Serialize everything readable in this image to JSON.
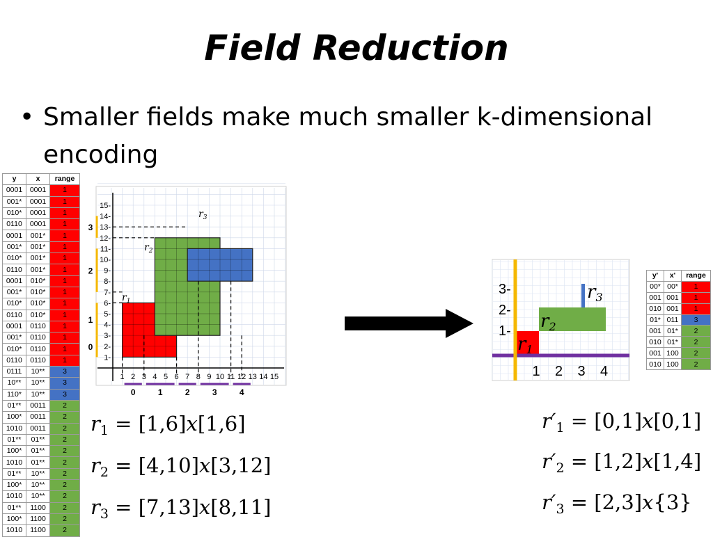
{
  "slide": {
    "title": "Field Reduction",
    "bullet": "Smaller fields make much smaller k-dimensional encoding"
  },
  "colors": {
    "red": "#ff0000",
    "blue": "#4472c4",
    "green": "#70ad47",
    "purple": "#7030a0",
    "orange": "#f5b800"
  },
  "left_table": {
    "headers": [
      "y",
      "x",
      "range"
    ],
    "rows": [
      [
        "0001",
        "0001",
        "1",
        "red"
      ],
      [
        "001*",
        "0001",
        "1",
        "red"
      ],
      [
        "010*",
        "0001",
        "1",
        "red"
      ],
      [
        "0110",
        "0001",
        "1",
        "red"
      ],
      [
        "0001",
        "001*",
        "1",
        "red"
      ],
      [
        "001*",
        "001*",
        "1",
        "red"
      ],
      [
        "010*",
        "001*",
        "1",
        "red"
      ],
      [
        "0110",
        "001*",
        "1",
        "red"
      ],
      [
        "0001",
        "010*",
        "1",
        "red"
      ],
      [
        "001*",
        "010*",
        "1",
        "red"
      ],
      [
        "010*",
        "010*",
        "1",
        "red"
      ],
      [
        "0110",
        "010*",
        "1",
        "red"
      ],
      [
        "0001",
        "0110",
        "1",
        "red"
      ],
      [
        "001*",
        "0110",
        "1",
        "red"
      ],
      [
        "010*",
        "0110",
        "1",
        "red"
      ],
      [
        "0110",
        "0110",
        "1",
        "red"
      ],
      [
        "0111",
        "10**",
        "3",
        "blue"
      ],
      [
        "10**",
        "10**",
        "3",
        "blue"
      ],
      [
        "110*",
        "10**",
        "3",
        "blue"
      ],
      [
        "01**",
        "0011",
        "2",
        "green"
      ],
      [
        "100*",
        "0011",
        "2",
        "green"
      ],
      [
        "1010",
        "0011",
        "2",
        "green"
      ],
      [
        "01**",
        "01**",
        "2",
        "green"
      ],
      [
        "100*",
        "01**",
        "2",
        "green"
      ],
      [
        "1010",
        "01**",
        "2",
        "green"
      ],
      [
        "01**",
        "10**",
        "2",
        "green"
      ],
      [
        "100*",
        "10**",
        "2",
        "green"
      ],
      [
        "1010",
        "10**",
        "2",
        "green"
      ],
      [
        "01**",
        "1100",
        "2",
        "green"
      ],
      [
        "100*",
        "1100",
        "2",
        "green"
      ],
      [
        "1010",
        "1100",
        "2",
        "green"
      ]
    ]
  },
  "right_table": {
    "headers": [
      "y'",
      "x'",
      "range"
    ],
    "rows": [
      [
        "00*",
        "00*",
        "1",
        "red"
      ],
      [
        "001",
        "001",
        "1",
        "red"
      ],
      [
        "010",
        "001",
        "1",
        "red"
      ],
      [
        "01*",
        "011",
        "3",
        "blue"
      ],
      [
        "001",
        "01*",
        "2",
        "green"
      ],
      [
        "010",
        "01*",
        "2",
        "green"
      ],
      [
        "001",
        "100",
        "2",
        "green"
      ],
      [
        "010",
        "100",
        "2",
        "green"
      ]
    ]
  },
  "left_plot": {
    "x_ticks": [
      "1",
      "2",
      "3",
      "4",
      "5",
      "6",
      "7",
      "8",
      "9",
      "10",
      "11",
      "12",
      "13",
      "14",
      "15"
    ],
    "y_ticks": [
      "1-",
      "2-",
      "3-",
      "4-",
      "5-",
      "6-",
      "7-",
      "8-",
      "9-",
      "10-",
      "11-",
      "12-",
      "13-",
      "14-",
      "15-"
    ],
    "x_range_labels": [
      "0",
      "1",
      "2",
      "3",
      "4"
    ],
    "y_range_labels": [
      "0",
      "1",
      "2",
      "3"
    ],
    "rect_labels": [
      "r",
      "r",
      "r"
    ],
    "rect_subs": [
      "1",
      "2",
      "3"
    ],
    "rects": [
      {
        "name": "r1",
        "x": [
          1,
          6
        ],
        "y": [
          1,
          6
        ],
        "color": "red"
      },
      {
        "name": "r2",
        "x": [
          4,
          10
        ],
        "y": [
          3,
          12
        ],
        "color": "green"
      },
      {
        "name": "r3",
        "x": [
          7,
          13
        ],
        "y": [
          8,
          11
        ],
        "color": "blue"
      }
    ]
  },
  "right_plot": {
    "x_ticks": [
      "1",
      "2",
      "3",
      "4"
    ],
    "y_ticks": [
      "1-",
      "2-",
      "3-"
    ],
    "rect_labels": [
      "r",
      "r",
      "r"
    ],
    "rect_subs": [
      "1",
      "2",
      "3"
    ]
  },
  "formulas_left": [
    {
      "var": "r",
      "sub": "1",
      "expr": " = [1,6]",
      "x": "x",
      "expr2": "[1,6]"
    },
    {
      "var": "r",
      "sub": "2",
      "expr": " = [4,10]",
      "x": "x",
      "expr2": "[3,12]"
    },
    {
      "var": "r",
      "sub": "3",
      "expr": " = [7,13]",
      "x": "x",
      "expr2": "[8,11]"
    }
  ],
  "formulas_right": [
    {
      "var": "r′",
      "sub": "1",
      "expr": " = [0,1]",
      "x": "x",
      "expr2": "[0,1]"
    },
    {
      "var": "r′",
      "sub": "2",
      "expr": " = [1,2]",
      "x": "x",
      "expr2": "[1,4]"
    },
    {
      "var": "r′",
      "sub": "3",
      "expr": " = [2,3]",
      "x": "x",
      "expr2": "{3}"
    }
  ]
}
